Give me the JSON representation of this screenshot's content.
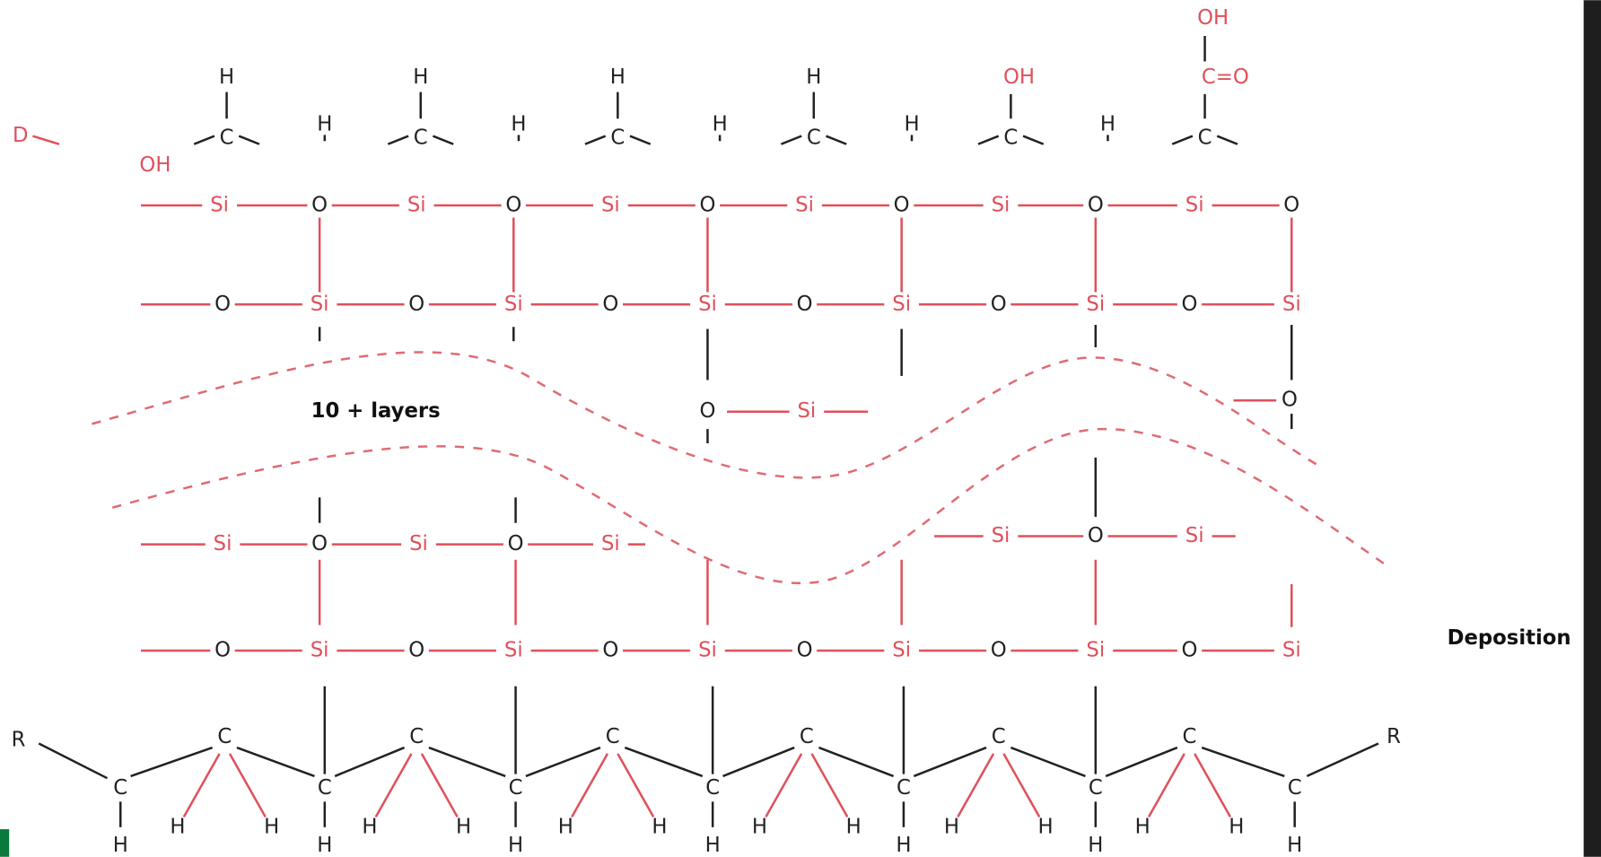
{
  "atoms": {
    "silicon": "Si",
    "oxygen": "O",
    "hydrogen": "H",
    "carbon": "C",
    "hydroxyl": "OH",
    "radical": "R",
    "carbonyl": "C=O",
    "fragment": "D"
  },
  "labels": {
    "layers": "10 + layers",
    "process": "Deposition"
  }
}
